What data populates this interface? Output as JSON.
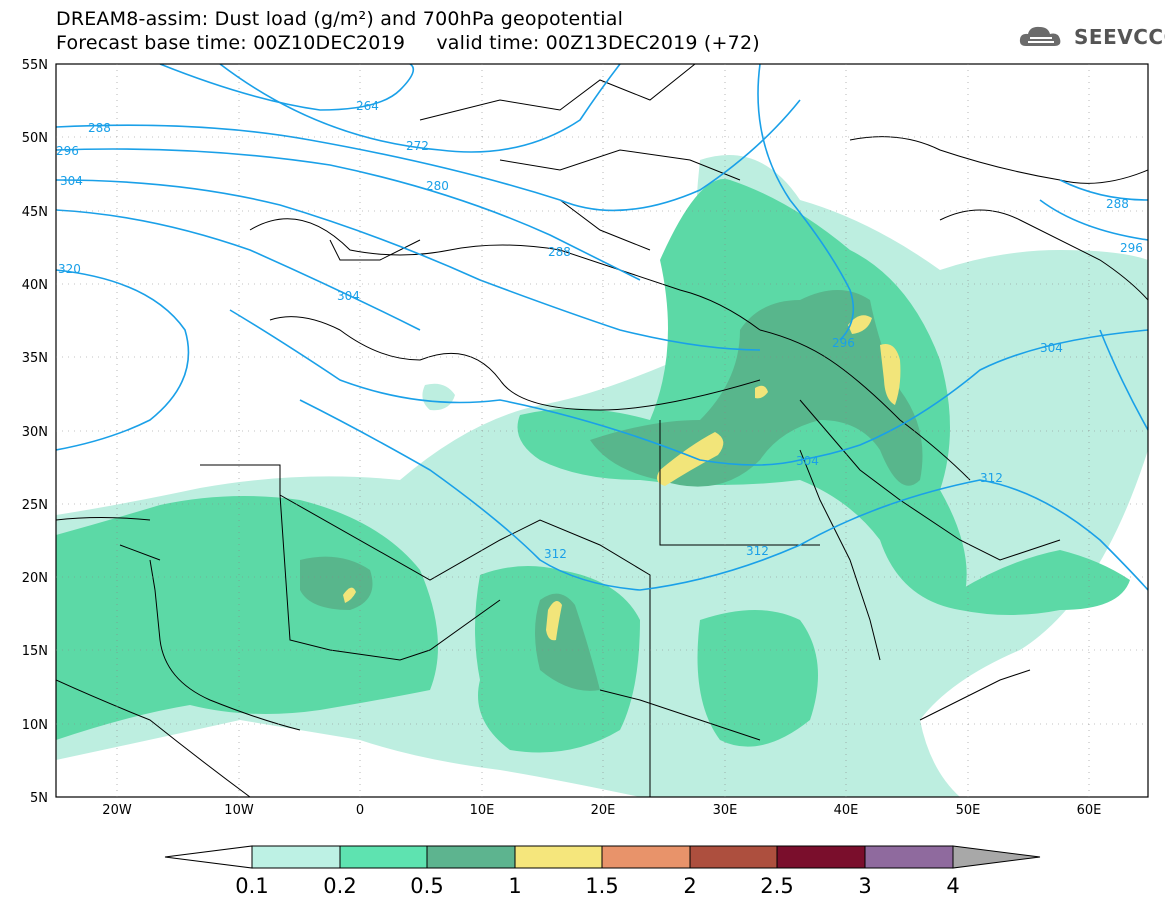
{
  "header": {
    "title_line1": "DREAM8-assim: Dust load (g/m²) and 700hPa geopotential",
    "title_line2": "Forecast base time: 00Z10DEC2019     valid time: 00Z13DEC2019 (+72)",
    "logo_text": "SEEVCCC"
  },
  "map": {
    "lat_labels": [
      "55N",
      "50N",
      "45N",
      "40N",
      "35N",
      "30N",
      "25N",
      "20N",
      "15N",
      "10N",
      "5N"
    ],
    "lon_labels": [
      "20W",
      "10W",
      "0",
      "10E",
      "20E",
      "30E",
      "40E",
      "50E",
      "60E"
    ],
    "contour_labels": [
      "264",
      "272",
      "280",
      "288",
      "288",
      "296",
      "304",
      "320",
      "304",
      "296",
      "304",
      "312",
      "312",
      "304",
      "312",
      "288",
      "296"
    ],
    "colors": {
      "contour": "#1aa0e8",
      "border": "#000000",
      "dust_01_02": "#bdeee0",
      "dust_02_05": "#5cd9a6",
      "dust_05_1": "#58b68c",
      "dust_1_15": "#f2e57a"
    }
  },
  "legend": {
    "labels": [
      "0.1",
      "0.2",
      "0.5",
      "1",
      "1.5",
      "2",
      "2.5",
      "3",
      "4"
    ],
    "colors": [
      "#ffffff",
      "#bdf1e4",
      "#5ee3b0",
      "#5db48f",
      "#f5e67c",
      "#e8936a",
      "#ad4f3e",
      "#7a0e2c",
      "#8f6a9e",
      "#a8a8a8"
    ]
  }
}
